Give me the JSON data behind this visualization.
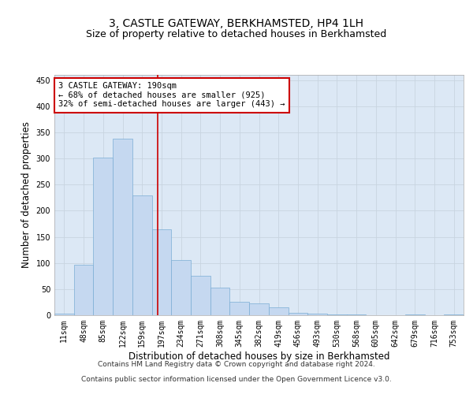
{
  "title": "3, CASTLE GATEWAY, BERKHAMSTED, HP4 1LH",
  "subtitle": "Size of property relative to detached houses in Berkhamsted",
  "xlabel": "Distribution of detached houses by size in Berkhamsted",
  "ylabel": "Number of detached properties",
  "footer_line1": "Contains HM Land Registry data © Crown copyright and database right 2024.",
  "footer_line2": "Contains public sector information licensed under the Open Government Licence v3.0.",
  "bar_labels": [
    "11sqm",
    "48sqm",
    "85sqm",
    "122sqm",
    "159sqm",
    "197sqm",
    "234sqm",
    "271sqm",
    "308sqm",
    "345sqm",
    "382sqm",
    "419sqm",
    "456sqm",
    "493sqm",
    "530sqm",
    "568sqm",
    "605sqm",
    "642sqm",
    "679sqm",
    "716sqm",
    "753sqm"
  ],
  "bar_values": [
    3,
    96,
    302,
    338,
    230,
    165,
    105,
    75,
    53,
    25,
    22,
    15,
    5,
    3,
    1,
    1,
    0,
    0,
    1,
    0,
    2
  ],
  "bar_color": "#c5d8f0",
  "bar_edge_color": "#7aadd4",
  "annotation_text": "3 CASTLE GATEWAY: 190sqm\n← 68% of detached houses are smaller (925)\n32% of semi-detached houses are larger (443) →",
  "annotation_box_color": "#ffffff",
  "annotation_box_edge": "#cc0000",
  "vline_color": "#cc0000",
  "ylim": [
    0,
    460
  ],
  "yticks": [
    0,
    50,
    100,
    150,
    200,
    250,
    300,
    350,
    400,
    450
  ],
  "grid_color": "#c8d4e0",
  "background_color": "#dce8f5",
  "fig_bg_color": "#ffffff",
  "title_fontsize": 10,
  "subtitle_fontsize": 9,
  "xlabel_fontsize": 8.5,
  "ylabel_fontsize": 8.5,
  "tick_fontsize": 7,
  "annotation_fontsize": 7.5,
  "footer_fontsize": 6.5,
  "vline_x_data": 4.82
}
